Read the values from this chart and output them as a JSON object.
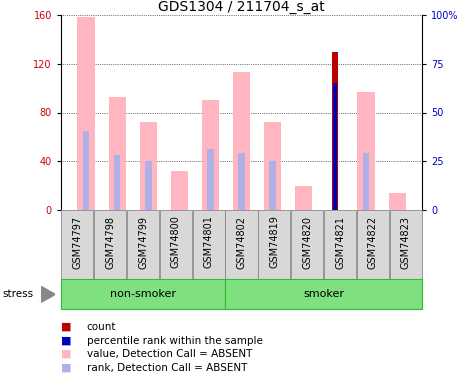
{
  "title": "GDS1304 / 211704_s_at",
  "samples": [
    "GSM74797",
    "GSM74798",
    "GSM74799",
    "GSM74800",
    "GSM74801",
    "GSM74802",
    "GSM74819",
    "GSM74820",
    "GSM74821",
    "GSM74822",
    "GSM74823"
  ],
  "value_ABSENT": [
    158,
    93,
    72,
    32,
    90,
    113,
    72,
    20,
    0,
    97,
    14
  ],
  "rank_ABSENT": [
    65,
    45,
    40,
    0,
    50,
    47,
    40,
    0,
    0,
    47,
    0
  ],
  "count": [
    0,
    0,
    0,
    0,
    0,
    0,
    0,
    0,
    130,
    0,
    0
  ],
  "percentile_rank_scaled": [
    0,
    0,
    0,
    0,
    0,
    0,
    0,
    0,
    65,
    0,
    0
  ],
  "groups": [
    {
      "label": "non-smoker",
      "start": 0,
      "end": 5
    },
    {
      "label": "smoker",
      "start": 5,
      "end": 11
    }
  ],
  "ylim_left": [
    0,
    160
  ],
  "ylim_right": [
    0,
    100
  ],
  "yticks_left": [
    0,
    40,
    80,
    120,
    160
  ],
  "yticks_right": [
    0,
    25,
    50,
    75,
    100
  ],
  "yticklabels_right": [
    "0",
    "25",
    "50",
    "75",
    "100%"
  ],
  "color_value_absent": "#FFB6C1",
  "color_rank_absent": "#B0B0E8",
  "color_count": "#BB0000",
  "color_percentile": "#0000BB",
  "title_fontsize": 10,
  "tick_fontsize": 7,
  "label_fontsize": 7,
  "legend_fontsize": 7.5,
  "axis_color_left": "#CC0000",
  "axis_color_right": "#0000CC",
  "group_bg_color": "#7EE07E",
  "sample_bg_color": "#D8D8D8",
  "stress_label": "stress"
}
